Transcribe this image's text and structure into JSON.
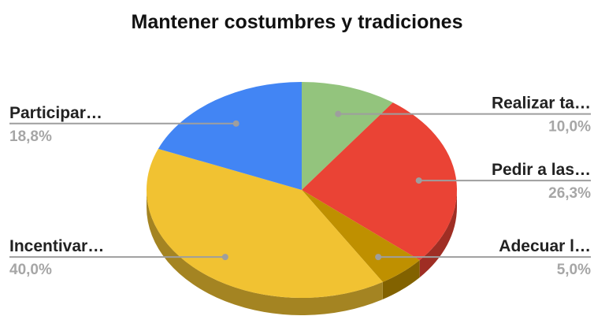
{
  "chart_data": {
    "type": "pie",
    "title": "Mantener costumbres y tradiciones",
    "slices": [
      {
        "label": "Realizar ta…",
        "percent_label": "10,0%",
        "value": 10.0,
        "color": "#93c47d",
        "side": "right"
      },
      {
        "label": "Pedir a las…",
        "percent_label": "26,3%",
        "value": 26.3,
        "color": "#ea4335",
        "side": "right"
      },
      {
        "label": "Adecuar l…",
        "percent_label": "5,0%",
        "value": 5.0,
        "color": "#bf9000",
        "side": "right"
      },
      {
        "label": "Incentivar…",
        "percent_label": "40,0%",
        "value": 40.0,
        "color": "#f1c232",
        "side": "left"
      },
      {
        "label": "Participar…",
        "percent_label": "18,8%",
        "value": 18.8,
        "color": "#4285f4",
        "side": "left"
      }
    ],
    "style": "3d",
    "legend": "none"
  }
}
